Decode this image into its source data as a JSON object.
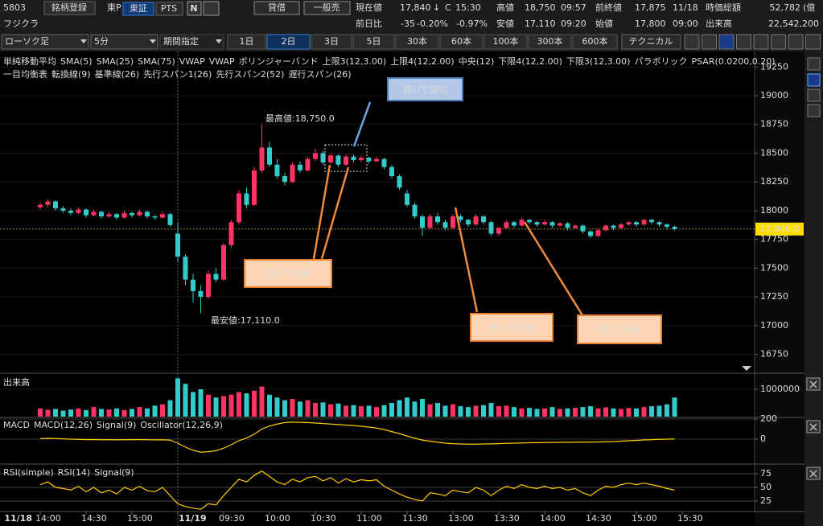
{
  "header": {
    "code": "5803",
    "register": "銘柄登録",
    "market": "東P",
    "tosho": "東証",
    "pts": "PTS",
    "n_icon": "N",
    "lending": "貸借",
    "general": "一般売",
    "name": "フジクラ"
  },
  "quote": {
    "current_label": "現在値",
    "current": "17,840",
    "arrow": "↓",
    "c": "C",
    "time": "15:30",
    "high_label": "高値",
    "high": "18,750",
    "high_time": "09:57",
    "prev_label": "前終値",
    "prev": "17,875",
    "prev_date": "11/18",
    "cap_label": "時価総額",
    "cap": "52,782",
    "cap_unit": "(億",
    "change_label": "前日比",
    "change": "-35",
    "change_pct": "-0.20%",
    "change_pct2": "-0.97%",
    "low_label": "安値",
    "low": "17,110",
    "low_time": "09:20",
    "open_label": "始値",
    "open": "17,800",
    "open_time": "09:00",
    "volume_label": "出来高",
    "volume": "22,542,200"
  },
  "toolbar": {
    "chart_type": "ローソク足",
    "interval": "5分",
    "period": "期間指定",
    "ranges": [
      "1日",
      "2日",
      "3日",
      "5日",
      "30本",
      "60本",
      "100本",
      "300本",
      "600本"
    ],
    "active_range": 1,
    "technical": "テクニカル"
  },
  "legend": {
    "row1": [
      {
        "text": "単純移動平均",
        "color": "#ffffff"
      },
      {
        "text": "SMA(5)",
        "color": "#ff6699"
      },
      {
        "text": "SMA(25)",
        "color": "#5599ff"
      },
      {
        "text": "SMA(75)",
        "color": "#ff66ff"
      },
      {
        "text": "VWAP",
        "color": "#ffffff"
      },
      {
        "text": "VWAP",
        "color": "#33cc33"
      },
      {
        "text": "ボリンジャーバンド",
        "color": "#ffffff"
      },
      {
        "text": "上限3(12,3.00)",
        "color": "#ff6633"
      },
      {
        "text": "上限4(12,2.00)",
        "color": "#4488ff"
      },
      {
        "text": "中央(12)",
        "color": "#ff6699"
      },
      {
        "text": "下限4(12,2.00)",
        "color": "#4488ff"
      },
      {
        "text": "下限3(12,3.00)",
        "color": "#ff6633"
      },
      {
        "text": "パラボリック",
        "color": "#ffffff"
      },
      {
        "text": "PSAR(0.0200,0.20)",
        "color": "#ffcc00"
      }
    ],
    "row2": [
      {
        "text": "一目均衡表",
        "color": "#ffffff"
      },
      {
        "text": "転換線(9)",
        "color": "#cc66ff"
      },
      {
        "text": "基準線(26)",
        "color": "#ffcc00"
      },
      {
        "text": "先行スパン1(26)",
        "color": "#ff6666"
      },
      {
        "text": "先行スパン2(52)",
        "color": "#33cc99"
      },
      {
        "text": "遅行スパン(26)",
        "color": "#6699ff"
      }
    ],
    "volume": [
      {
        "text": "出来高",
        "color": "#ffffff"
      }
    ],
    "macd": [
      {
        "text": "MACD",
        "color": "#ffffff"
      },
      {
        "text": "MACD(12,26)",
        "color": "#ffcc00"
      },
      {
        "text": "Signal(9)",
        "color": "#4488ff"
      },
      {
        "text": "Oscillator(12,26,9)",
        "color": "#ff3366"
      }
    ],
    "rsi": [
      {
        "text": "RSI(simple)",
        "color": "#ffffff"
      },
      {
        "text": "RSI(14)",
        "color": "#ffcc00"
      },
      {
        "text": "Signal(9)",
        "color": "#4488ff"
      }
    ]
  },
  "price_axis": {
    "ylim": [
      16600,
      19385
    ],
    "ticks": [
      19250,
      19000,
      18750,
      18500,
      18250,
      18000,
      17750,
      17500,
      17250,
      17000,
      16750
    ],
    "current": {
      "value": 17840,
      "label": "17,840.0"
    }
  },
  "annotations": {
    "high": "最高値:18,750.0",
    "low": "最安値:17,110.0",
    "stop": "買いで損切",
    "take1": "買いで利確",
    "take2": "買いで利確",
    "take3": "買いで利確"
  },
  "candles": [
    [
      18030,
      18070,
      18010,
      18050
    ],
    [
      18050,
      18100,
      18030,
      18080
    ],
    [
      18080,
      18090,
      18000,
      18020
    ],
    [
      18020,
      18040,
      17980,
      18000
    ],
    [
      18000,
      18020,
      17960,
      17980
    ],
    [
      17980,
      18030,
      17970,
      18010
    ],
    [
      18010,
      18020,
      17940,
      17960
    ],
    [
      17960,
      18010,
      17950,
      17990
    ],
    [
      17990,
      18000,
      17930,
      17950
    ],
    [
      17950,
      17990,
      17940,
      17970
    ],
    [
      17970,
      17980,
      17920,
      17940
    ],
    [
      17940,
      18000,
      17930,
      17980
    ],
    [
      17980,
      17990,
      17940,
      17960
    ],
    [
      17960,
      18010,
      17950,
      17990
    ],
    [
      17990,
      18000,
      17930,
      17950
    ],
    [
      17950,
      17960,
      17920,
      17940
    ],
    [
      17940,
      17990,
      17930,
      17970
    ],
    [
      17970,
      17980,
      17860,
      17875
    ],
    [
      17800,
      17900,
      17550,
      17600
    ],
    [
      17600,
      17620,
      17350,
      17400
    ],
    [
      17400,
      17450,
      17200,
      17300
    ],
    [
      17300,
      17350,
      17110,
      17250
    ],
    [
      17250,
      17480,
      17230,
      17450
    ],
    [
      17450,
      17500,
      17380,
      17400
    ],
    [
      17400,
      17720,
      17390,
      17700
    ],
    [
      17700,
      17920,
      17680,
      17900
    ],
    [
      17900,
      18180,
      17880,
      18150
    ],
    [
      18150,
      18200,
      18020,
      18050
    ],
    [
      18050,
      18380,
      18040,
      18350
    ],
    [
      18350,
      18750,
      18330,
      18550
    ],
    [
      18550,
      18600,
      18380,
      18400
    ],
    [
      18400,
      18450,
      18280,
      18300
    ],
    [
      18300,
      18330,
      18220,
      18250
    ],
    [
      18250,
      18420,
      18240,
      18400
    ],
    [
      18400,
      18430,
      18330,
      18350
    ],
    [
      18350,
      18470,
      18340,
      18450
    ],
    [
      18450,
      18540,
      18430,
      18500
    ],
    [
      18500,
      18520,
      18400,
      18420
    ],
    [
      18420,
      18500,
      18410,
      18480
    ],
    [
      18480,
      18490,
      18380,
      18400
    ],
    [
      18400,
      18490,
      18390,
      18470
    ],
    [
      18470,
      18490,
      18420,
      18440
    ],
    [
      18440,
      18480,
      18420,
      18460
    ],
    [
      18460,
      18470,
      18410,
      18430
    ],
    [
      18430,
      18470,
      18420,
      18450
    ],
    [
      18450,
      18460,
      18360,
      18380
    ],
    [
      18380,
      18400,
      18280,
      18300
    ],
    [
      18300,
      18320,
      18180,
      18200
    ],
    [
      18150,
      18180,
      18030,
      18050
    ],
    [
      18050,
      18070,
      17930,
      17950
    ],
    [
      17950,
      17970,
      17780,
      17850
    ],
    [
      17850,
      17970,
      17840,
      17950
    ],
    [
      17950,
      17980,
      17880,
      17900
    ],
    [
      17900,
      17920,
      17830,
      17850
    ],
    [
      17850,
      17970,
      17840,
      17950
    ],
    [
      17950,
      17970,
      17900,
      17920
    ],
    [
      17920,
      17930,
      17860,
      17880
    ],
    [
      17880,
      17970,
      17870,
      17950
    ],
    [
      17950,
      17960,
      17880,
      17900
    ],
    [
      17900,
      17910,
      17780,
      17800
    ],
    [
      17800,
      17860,
      17780,
      17850
    ],
    [
      17850,
      17920,
      17840,
      17900
    ],
    [
      17900,
      17910,
      17850,
      17870
    ],
    [
      17870,
      17940,
      17860,
      17920
    ],
    [
      17920,
      17930,
      17880,
      17900
    ],
    [
      17900,
      17910,
      17860,
      17880
    ],
    [
      17880,
      17920,
      17870,
      17900
    ],
    [
      17900,
      17910,
      17850,
      17870
    ],
    [
      17870,
      17900,
      17860,
      17890
    ],
    [
      17890,
      17900,
      17830,
      17850
    ],
    [
      17850,
      17880,
      17840,
      17870
    ],
    [
      17870,
      17880,
      17800,
      17820
    ],
    [
      17820,
      17830,
      17760,
      17780
    ],
    [
      17780,
      17840,
      17770,
      17830
    ],
    [
      17830,
      17880,
      17820,
      17870
    ],
    [
      17870,
      17880,
      17830,
      17850
    ],
    [
      17850,
      17890,
      17840,
      17880
    ],
    [
      17880,
      17910,
      17870,
      17900
    ],
    [
      17900,
      17910,
      17860,
      17880
    ],
    [
      17880,
      17930,
      17870,
      17920
    ],
    [
      17920,
      17930,
      17880,
      17900
    ],
    [
      17900,
      17910,
      17860,
      17880
    ],
    [
      17880,
      17890,
      17840,
      17860
    ],
    [
      17860,
      17870,
      17830,
      17840
    ]
  ],
  "volume_axis": {
    "ylim": [
      0,
      1530000
    ],
    "ticks": [
      1000000
    ]
  },
  "volume": [
    300000,
    250000,
    280000,
    220000,
    260000,
    300000,
    240000,
    350000,
    280000,
    260000,
    300000,
    240000,
    280000,
    350000,
    300000,
    400000,
    450000,
    600000,
    1400000,
    1200000,
    900000,
    1000000,
    800000,
    700000,
    750000,
    800000,
    900000,
    850000,
    950000,
    1100000,
    800000,
    700000,
    600000,
    650000,
    550000,
    600000,
    500000,
    520000,
    450000,
    480000,
    400000,
    420000,
    380000,
    400000,
    350000,
    420000,
    500000,
    600000,
    700000,
    550000,
    650000,
    450000,
    500000,
    400000,
    450000,
    380000,
    350000,
    400000,
    420000,
    500000,
    380000,
    400000,
    350000,
    300000,
    320000,
    280000,
    300000,
    350000,
    280000,
    300000,
    320000,
    350000,
    380000,
    300000,
    340000,
    300000,
    280000,
    320000,
    300000,
    350000,
    380000,
    400000,
    450000,
    700000
  ],
  "macd_axis": {
    "ylim": [
      -240,
      208
    ],
    "ticks": [
      200,
      0
    ]
  },
  "macd": [
    5,
    8,
    6,
    3,
    0,
    -2,
    -5,
    -4,
    -6,
    -5,
    -7,
    -5,
    -6,
    -4,
    -6,
    -7,
    -6,
    -10,
    -40,
    -80,
    -110,
    -130,
    -125,
    -115,
    -90,
    -55,
    -15,
    10,
    50,
    100,
    130,
    150,
    165,
    170,
    168,
    165,
    160,
    155,
    150,
    145,
    140,
    135,
    128,
    120,
    110,
    95,
    75,
    55,
    30,
    10,
    -10,
    -20,
    -30,
    -40,
    -45,
    -48,
    -50,
    -50,
    -48,
    -47,
    -45,
    -42,
    -40,
    -38,
    -36,
    -35,
    -34,
    -33,
    -32,
    -31,
    -30,
    -30,
    -29,
    -28,
    -26,
    -24,
    -20,
    -16,
    -12,
    -8,
    -5,
    -2,
    0,
    2
  ],
  "rsi_axis": {
    "ylim": [
      8.8,
      91.2
    ],
    "ticks": [
      75,
      50,
      25
    ]
  },
  "rsi": [
    55,
    60,
    50,
    48,
    45,
    52,
    42,
    50,
    40,
    45,
    38,
    50,
    45,
    52,
    44,
    42,
    50,
    35,
    20,
    15,
    12,
    10,
    20,
    18,
    35,
    50,
    65,
    60,
    72,
    80,
    70,
    60,
    55,
    65,
    60,
    68,
    70,
    62,
    68,
    58,
    66,
    60,
    64,
    62,
    64,
    52,
    45,
    38,
    32,
    28,
    25,
    40,
    38,
    35,
    45,
    42,
    40,
    50,
    45,
    35,
    45,
    52,
    48,
    55,
    50,
    48,
    52,
    48,
    50,
    45,
    48,
    40,
    35,
    45,
    52,
    50,
    55,
    58,
    55,
    58,
    55,
    52,
    48,
    45
  ],
  "time_labels": [
    {
      "date": "11/18",
      "time": "14:00"
    },
    {
      "time": "14:30"
    },
    {
      "time": "15:00"
    },
    {
      "date": "11/19"
    },
    {
      "time": "09:30"
    },
    {
      "time": "10:00"
    },
    {
      "time": "10:30"
    },
    {
      "time": "11:00"
    },
    {
      "time": "11:30"
    },
    {
      "time": "13:00"
    },
    {
      "time": "13:30"
    },
    {
      "time": "14:00"
    },
    {
      "time": "14:30"
    },
    {
      "time": "15:00"
    },
    {
      "time": "15:30"
    }
  ]
}
